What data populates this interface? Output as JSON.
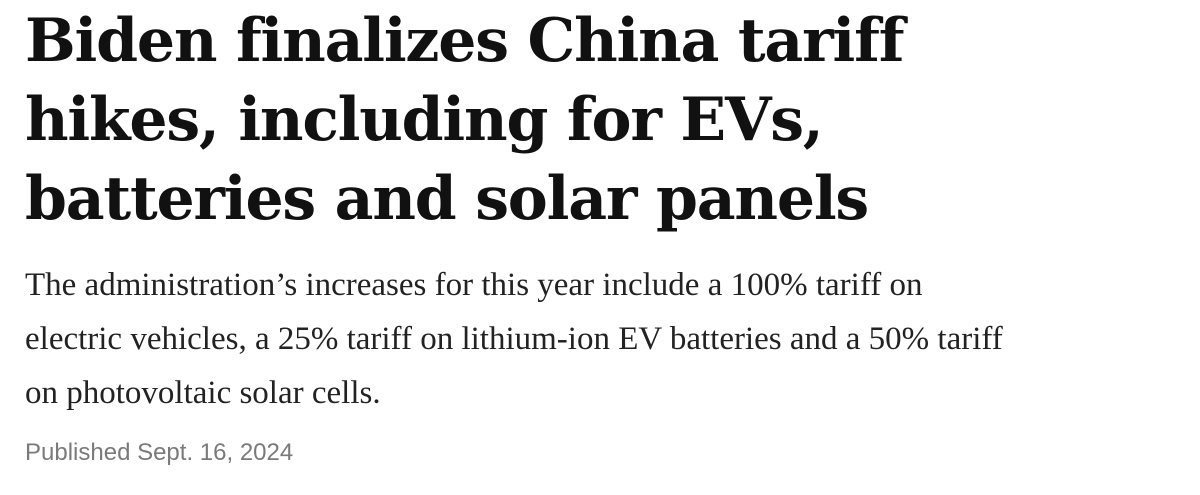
{
  "article": {
    "headline_lines": [
      "Biden finalizes China tariff",
      "hikes, including for EVs,",
      "batteries and solar panels"
    ],
    "dek_lines": [
      "The administration’s increases for this year include a 100% tariff on",
      "electric vehicles, a 25% tariff on lithium-ion EV batteries and a 50% tariff",
      "on photovoltaic solar cells."
    ],
    "published": "Published Sept. 16, 2024"
  }
}
